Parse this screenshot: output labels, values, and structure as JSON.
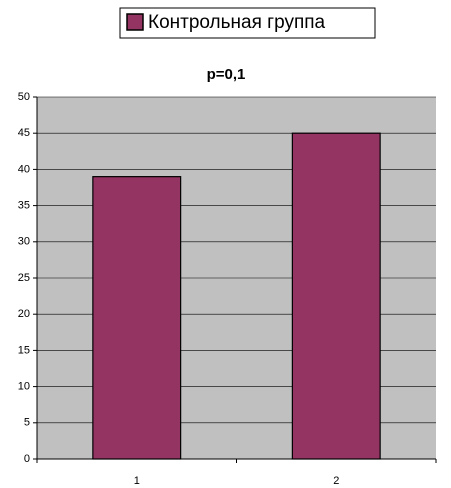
{
  "chart_data": {
    "type": "bar",
    "title": "p=0,1",
    "categories": [
      "1",
      "2"
    ],
    "series": [
      {
        "name": "Контрольная группа",
        "color": "#943462",
        "values": [
          39,
          45
        ]
      }
    ],
    "ylim": [
      0,
      50
    ],
    "yticks": [
      0,
      5,
      10,
      15,
      20,
      25,
      30,
      35,
      40,
      45,
      50
    ],
    "grid": true,
    "legend": "top"
  }
}
